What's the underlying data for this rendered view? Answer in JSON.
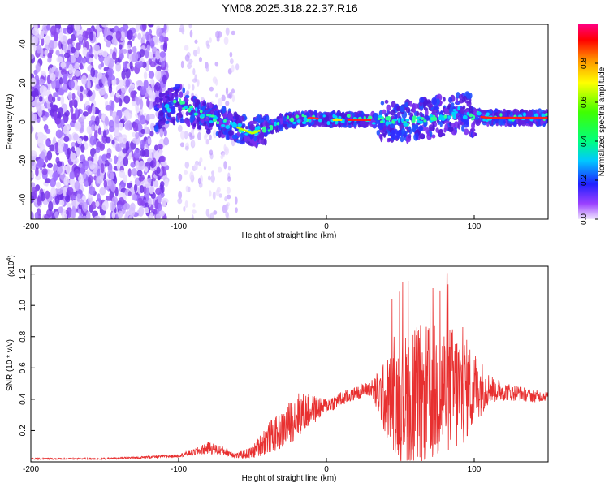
{
  "title": "YM08.2025.318.22.37.R16",
  "chart_data": [
    {
      "type": "heatmap",
      "name": "spectrogram",
      "xlabel": "Height of straight line (km)",
      "ylabel": "Frequency (Hz)",
      "xlim": [
        -200,
        150
      ],
      "ylim": [
        -50,
        50
      ],
      "xticks": [
        -200,
        -100,
        0,
        100
      ],
      "yticks": [
        -40,
        -20,
        0,
        20,
        40
      ],
      "colorbar": {
        "label": "Normalized spectral amplitude",
        "range": [
          0,
          1
        ],
        "ticks": [
          "0.0",
          "0.2",
          "0.4",
          "0.6",
          "0.8"
        ]
      },
      "centerline": [
        [
          -115,
          5
        ],
        [
          -100,
          10
        ],
        [
          -90,
          5
        ],
        [
          -80,
          2
        ],
        [
          -70,
          0
        ],
        [
          -60,
          -3
        ],
        [
          -50,
          -6
        ],
        [
          -40,
          -3
        ],
        [
          -30,
          0
        ],
        [
          -20,
          1
        ],
        [
          -10,
          2
        ],
        [
          0,
          1
        ],
        [
          20,
          1
        ],
        [
          35,
          1
        ],
        [
          50,
          0
        ],
        [
          70,
          2
        ],
        [
          90,
          5
        ],
        [
          100,
          3
        ],
        [
          110,
          2
        ],
        [
          150,
          2
        ]
      ]
    },
    {
      "type": "line",
      "name": "snr",
      "xlabel": "Height of straight line (km)",
      "ylabel": "SNR (10 * v/v)",
      "ylabel_scale": "(x10",
      "ylabel_exp": "4",
      "xlim": [
        -200,
        150
      ],
      "ylim": [
        0,
        1.25
      ],
      "xticks": [
        -200,
        -100,
        0,
        100
      ],
      "yticks": [
        "0.2",
        "0.4",
        "0.6",
        "0.8",
        "1.0",
        "1.2"
      ],
      "color": "#e83030",
      "series": [
        {
          "name": "SNR",
          "x": [
            -200,
            -150,
            -120,
            -100,
            -90,
            -80,
            -70,
            -60,
            -50,
            -40,
            -30,
            -20,
            -10,
            0,
            10,
            20,
            30,
            40,
            50,
            60,
            70,
            80,
            90,
            100,
            110,
            120,
            130,
            140,
            150
          ],
          "y_base": [
            0.02,
            0.02,
            0.03,
            0.04,
            0.06,
            0.09,
            0.07,
            0.04,
            0.06,
            0.15,
            0.2,
            0.3,
            0.33,
            0.36,
            0.4,
            0.44,
            0.47,
            0.4,
            0.4,
            0.42,
            0.43,
            0.45,
            0.45,
            0.48,
            0.47,
            0.45,
            0.44,
            0.42,
            0.42
          ],
          "y_spread": [
            0.005,
            0.005,
            0.008,
            0.01,
            0.02,
            0.04,
            0.03,
            0.02,
            0.04,
            0.1,
            0.12,
            0.15,
            0.1,
            0.05,
            0.05,
            0.04,
            0.05,
            0.25,
            0.4,
            0.45,
            0.45,
            0.45,
            0.4,
            0.25,
            0.1,
            0.06,
            0.05,
            0.04,
            0.03
          ]
        }
      ]
    }
  ]
}
